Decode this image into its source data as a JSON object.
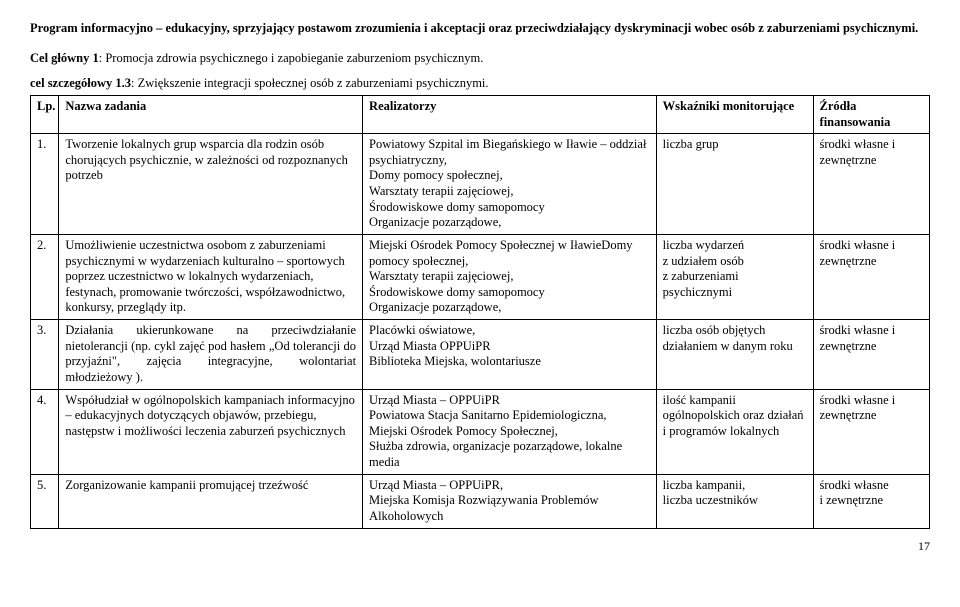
{
  "title": "Program informacyjno – edukacyjny, sprzyjający postawom zrozumienia i akceptacji oraz przeciwdziałający dyskryminacji wobec osób z zaburzeniami psychicznymi.",
  "goal_label": "Cel główny 1",
  "goal_text": ": Promocja zdrowia psychicznego i zapobieganie zaburzeniom psychicznym.",
  "subgoal_label": "cel szczegółowy 1.3",
  "subgoal_text": ": Zwiększenie integracji społecznej osób z zaburzeniami psychicznymi.",
  "headers": {
    "lp": "Lp.",
    "name": "Nazwa zadania",
    "real": "Realizatorzy",
    "ws": "Wskaźniki monitorujące",
    "src": "Źródła finansowania"
  },
  "rows": [
    {
      "lp": "1.",
      "name": "Tworzenie lokalnych grup wsparcia dla rodzin osób chorujących psychicznie, w zależności od rozpoznanych potrzeb",
      "real": "Powiatowy Szpital im Biegańskiego w Iławie – oddział psychiatryczny,\nDomy pomocy społecznej,\nWarsztaty terapii zajęciowej,\nŚrodowiskowe domy samopomocy\nOrganizacje pozarządowe,",
      "ws": "liczba grup",
      "src": "środki własne i zewnętrzne"
    },
    {
      "lp": "2.",
      "name": "Umożliwienie uczestnictwa osobom z zaburzeniami psychicznymi  w wydarzeniach kulturalno – sportowych poprzez uczestnictwo  w lokalnych wydarzeniach, festynach, promowanie twórczości, współzawodnictwo, konkursy, przeglądy itp.",
      "real": "Miejski Ośrodek Pomocy Społecznej w IławieDomy pomocy społecznej,\nWarsztaty terapii zajęciowej,\nŚrodowiskowe domy samopomocy\nOrganizacje pozarządowe,",
      "ws": "liczba wydarzeń\nz udziałem osób\nz zaburzeniami psychicznymi",
      "src": "środki własne i zewnętrzne"
    },
    {
      "lp": "3.",
      "name": "Działania ukierunkowane na przeciwdziałanie nietolerancji (np. cykl  zajęć pod hasłem „Od tolerancji do przyjaźni\", zajęcia integracyjne, wolontariat młodzieżowy ).",
      "real": "Placówki oświatowe,\nUrząd Miasta OPPUiPR\nBiblioteka Miejska, wolontariusze",
      "ws": "liczba osób objętych działaniem w danym roku",
      "src": "środki własne i zewnętrzne"
    },
    {
      "lp": "4.",
      "name": "Współudział w ogólnopolskich kampaniach informacyjno – edukacyjnych  dotyczących objawów, przebiegu, następstw i możliwości leczenia zaburzeń psychicznych",
      "real": "Urząd Miasta – OPPUiPR\nPowiatowa Stacja Sanitarno Epidemiologiczna,\nMiejski Ośrodek Pomocy Społecznej,\nSłużba zdrowia, organizacje pozarządowe, lokalne media",
      "ws": "ilość kampanii ogólnopolskich oraz działań i programów lokalnych",
      "src": "środki własne i zewnętrzne"
    },
    {
      "lp": "5.",
      "name": "Zorganizowanie kampanii promującej trzeźwość",
      "real": "Urząd Miasta – OPPUiPR,\nMiejska Komisja Rozwiązywania Problemów Alkoholowych",
      "ws": "liczba kampanii,\nliczba uczestników",
      "src": "środki własne\ni zewnętrzne"
    }
  ],
  "page_number": "17"
}
